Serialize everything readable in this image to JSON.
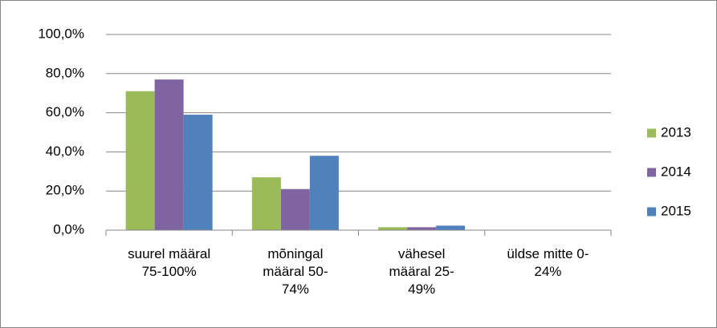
{
  "chart_data": {
    "type": "bar",
    "categories": [
      "suurel määral 75-100%",
      "mõningal määral 50-74%",
      "vähesel määral 25-49%",
      "üldse mitte 0-24%"
    ],
    "series": [
      {
        "name": "2013",
        "color": "#9bbb59",
        "values": [
          71,
          27,
          1.5,
          0
        ]
      },
      {
        "name": "2014",
        "color": "#8064a2",
        "values": [
          77,
          21,
          1.5,
          0
        ]
      },
      {
        "name": "2015",
        "color": "#4f81bd",
        "values": [
          59,
          38,
          2.3,
          0
        ]
      }
    ],
    "ylim": [
      0,
      100
    ],
    "yticks": [
      {
        "value": 0,
        "label": "0,0%"
      },
      {
        "value": 20,
        "label": "20,0%"
      },
      {
        "value": 40,
        "label": "40,0%"
      },
      {
        "value": 60,
        "label": "60,0%"
      },
      {
        "value": 80,
        "label": "80,0%"
      },
      {
        "value": 100,
        "label": "100,0%"
      }
    ],
    "grid": true,
    "legend": "right"
  }
}
